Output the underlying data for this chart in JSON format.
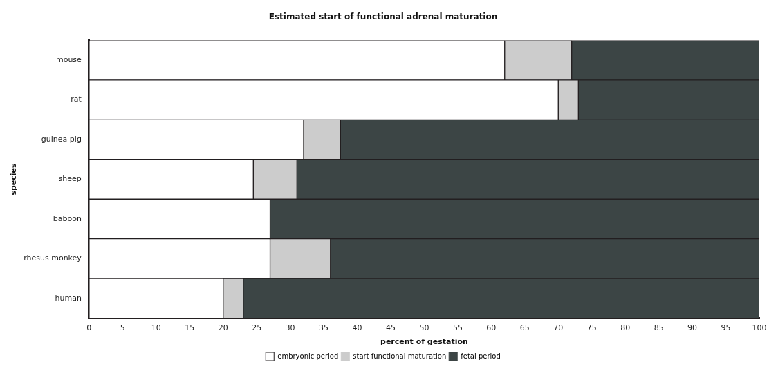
{
  "chart_data": {
    "type": "bar",
    "orientation": "horizontal",
    "stacked": true,
    "title": "Estimated start of functional adrenal maturation",
    "xlabel": "percent of gestation",
    "ylabel": "species",
    "categories": [
      "mouse",
      "rat",
      "guinea pig",
      "sheep",
      "baboon",
      "rhesus monkey",
      "human"
    ],
    "series": [
      {
        "name": "embryonic period",
        "color": "#ffffff",
        "values": [
          62,
          70,
          32,
          24.5,
          27,
          27,
          20
        ]
      },
      {
        "name": "start functional maturation",
        "color": "#cccccc",
        "values": [
          10,
          3,
          5.5,
          6.5,
          0,
          9,
          3
        ]
      },
      {
        "name": "fetal period",
        "color": "#3c4545",
        "values": [
          28,
          27,
          62.5,
          69,
          73,
          64,
          77
        ]
      }
    ],
    "xlim": [
      0,
      100
    ],
    "xticks": [
      0,
      5,
      10,
      15,
      20,
      25,
      30,
      35,
      40,
      45,
      50,
      55,
      60,
      65,
      70,
      75,
      80,
      85,
      90,
      95,
      100
    ],
    "grid": false,
    "legend": "bottom"
  }
}
